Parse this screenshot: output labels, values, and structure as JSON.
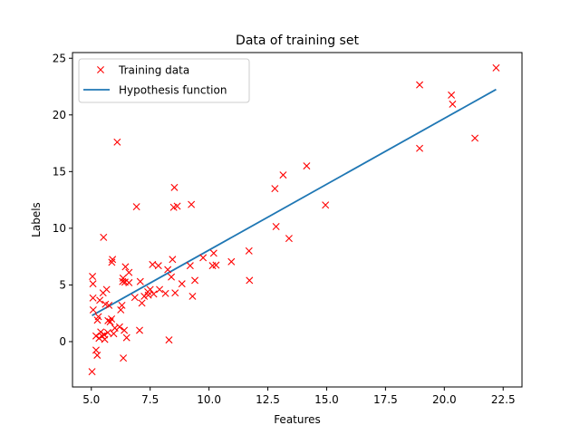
{
  "chart_data": {
    "type": "scatter",
    "title": "Data of training set",
    "xlabel": "Features",
    "ylabel": "Labels",
    "xlim": [
      4.2,
      23.3
    ],
    "ylim": [
      -4.0,
      25.5
    ],
    "xticks": [
      5.0,
      7.5,
      10.0,
      12.5,
      15.0,
      17.5,
      20.0,
      22.5
    ],
    "xtick_labels": [
      "5.0",
      "7.5",
      "10.0",
      "12.5",
      "15.0",
      "17.5",
      "20.0",
      "22.5"
    ],
    "yticks": [
      0,
      5,
      10,
      15,
      20,
      25
    ],
    "ytick_labels": [
      "0",
      "5",
      "10",
      "15",
      "20",
      "25"
    ],
    "grid": false,
    "legend_position": "top-left",
    "series": [
      {
        "name": "Training data",
        "kind": "scatter",
        "marker": "x",
        "color": "#ff0000",
        "points": [
          [
            5.03,
            -2.65
          ],
          [
            5.05,
            5.75
          ],
          [
            5.07,
            5.1
          ],
          [
            5.07,
            3.85
          ],
          [
            5.08,
            2.8
          ],
          [
            5.2,
            0.5
          ],
          [
            5.2,
            -0.75
          ],
          [
            5.25,
            -1.2
          ],
          [
            5.26,
            1.9
          ],
          [
            5.3,
            2.2
          ],
          [
            5.33,
            0.3
          ],
          [
            5.36,
            3.65
          ],
          [
            5.4,
            0.85
          ],
          [
            5.45,
            0.5
          ],
          [
            5.5,
            4.3
          ],
          [
            5.52,
            9.2
          ],
          [
            5.55,
            0.6
          ],
          [
            5.57,
            0.2
          ],
          [
            5.6,
            3.3
          ],
          [
            5.65,
            4.6
          ],
          [
            5.7,
            0.8
          ],
          [
            5.71,
            1.85
          ],
          [
            5.75,
            3.2
          ],
          [
            5.8,
            1.75
          ],
          [
            5.86,
            2.0
          ],
          [
            5.87,
            7.0
          ],
          [
            5.9,
            7.25
          ],
          [
            5.95,
            0.7
          ],
          [
            6.0,
            1.2
          ],
          [
            6.1,
            17.6
          ],
          [
            6.2,
            1.3
          ],
          [
            6.25,
            2.8
          ],
          [
            6.3,
            3.2
          ],
          [
            6.33,
            5.3
          ],
          [
            6.35,
            5.6
          ],
          [
            6.36,
            -1.45
          ],
          [
            6.4,
            1.0
          ],
          [
            6.43,
            5.25
          ],
          [
            6.45,
            6.6
          ],
          [
            6.5,
            0.35
          ],
          [
            6.6,
            6.1
          ],
          [
            6.6,
            5.2
          ],
          [
            6.85,
            3.9
          ],
          [
            6.92,
            11.9
          ],
          [
            7.05,
            1.0
          ],
          [
            7.08,
            5.3
          ],
          [
            7.15,
            3.4
          ],
          [
            7.25,
            4.0
          ],
          [
            7.4,
            4.4
          ],
          [
            7.42,
            4.1
          ],
          [
            7.5,
            4.6
          ],
          [
            7.6,
            6.8
          ],
          [
            7.65,
            4.2
          ],
          [
            7.85,
            6.7
          ],
          [
            7.9,
            4.6
          ],
          [
            8.15,
            4.25
          ],
          [
            8.25,
            6.35
          ],
          [
            8.3,
            0.15
          ],
          [
            8.4,
            5.7
          ],
          [
            8.45,
            7.25
          ],
          [
            8.5,
            11.85
          ],
          [
            8.53,
            13.6
          ],
          [
            8.56,
            4.3
          ],
          [
            8.65,
            11.95
          ],
          [
            8.85,
            5.1
          ],
          [
            9.2,
            6.7
          ],
          [
            9.25,
            12.1
          ],
          [
            9.3,
            4.0
          ],
          [
            9.4,
            5.4
          ],
          [
            9.75,
            7.4
          ],
          [
            10.15,
            6.7
          ],
          [
            10.2,
            7.8
          ],
          [
            10.3,
            6.75
          ],
          [
            10.95,
            7.05
          ],
          [
            11.7,
            8.0
          ],
          [
            11.72,
            5.4
          ],
          [
            12.8,
            13.5
          ],
          [
            12.85,
            10.15
          ],
          [
            13.15,
            14.7
          ],
          [
            13.4,
            9.1
          ],
          [
            14.15,
            15.5
          ],
          [
            14.95,
            12.05
          ],
          [
            18.95,
            22.65
          ],
          [
            18.95,
            17.05
          ],
          [
            20.3,
            21.75
          ],
          [
            20.35,
            20.95
          ],
          [
            21.3,
            17.95
          ],
          [
            22.2,
            24.15
          ]
        ]
      },
      {
        "name": "Hypothesis function",
        "kind": "line",
        "color": "#1f77b4",
        "x": [
          5.03,
          22.2
        ],
        "y": [
          2.3,
          22.25
        ]
      }
    ]
  }
}
